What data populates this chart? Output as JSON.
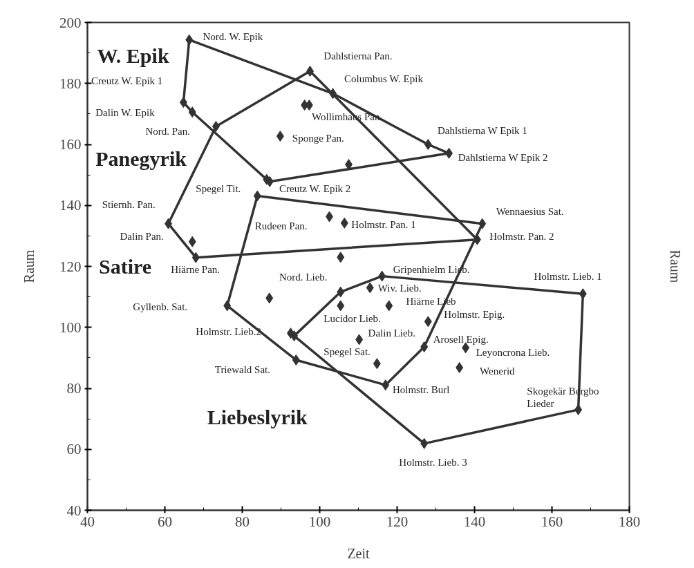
{
  "chart_data": {
    "type": "scatter",
    "xlabel": "Zeit",
    "ylabel": "Raum",
    "y2label": "Raum",
    "xlim": [
      40,
      180
    ],
    "xticks": [
      40,
      60,
      80,
      100,
      120,
      140,
      160,
      180
    ],
    "ylim": [
      40,
      200
    ],
    "yticks": [
      40,
      60,
      80,
      100,
      120,
      140,
      160,
      180,
      200
    ],
    "grid": false,
    "marker": "diamond",
    "series": [
      {
        "color": "#333333",
        "x": [
          66.3,
          103.4,
          128.0,
          133.4,
          87.1,
          86.3,
          67.1,
          64.8,
          96.1,
          97.3,
          89.8,
          107.5,
          97.5,
          73.2,
          60.9,
          68.0,
          140.7,
          67.1,
          83.9,
          142.0,
          127.0,
          117.0,
          93.9,
          76.1,
          102.5,
          106.4,
          105.4,
          93.4,
          92.5,
          105.4,
          116.1,
          168.0,
          166.8,
          127.0,
          87.0,
          105.4,
          110.2,
          113.0,
          117.9,
          128.0,
          114.8,
          137.7,
          136.1
        ],
        "values": [
          194.3,
          176.7,
          160.0,
          157.1,
          147.8,
          148.5,
          170.6,
          173.8,
          172.9,
          172.9,
          162.7,
          153.4,
          184.0,
          165.9,
          134.0,
          122.9,
          128.8,
          128.1,
          143.1,
          134.0,
          93.6,
          81.1,
          89.3,
          107.1,
          136.3,
          134.2,
          123.0,
          97.2,
          98.1,
          111.6,
          116.8,
          111.0,
          73.0,
          61.9,
          109.6,
          107.1,
          96.0,
          113.0,
          107.1,
          101.9,
          88.1,
          93.3,
          86.8
        ]
      },
      {
        "type": "line",
        "marker": "none",
        "color": "#333333",
        "x": [
          66.3,
          103.4,
          128.0,
          133.4
        ],
        "values": [
          194.3,
          176.7,
          160.0,
          157.1
        ]
      },
      {
        "type": "line",
        "marker": "none",
        "color": "#333333",
        "x": [
          64.8,
          67.1,
          86.3,
          87.1,
          133.4
        ],
        "values": [
          173.8,
          170.6,
          148.5,
          147.8,
          157.1
        ]
      },
      {
        "type": "line",
        "marker": "none",
        "color": "#333333",
        "x": [
          64.8,
          66.3
        ],
        "values": [
          173.8,
          194.3
        ]
      },
      {
        "type": "line",
        "marker": "none",
        "color": "#333333",
        "x": [
          60.9,
          73.2,
          97.5
        ],
        "values": [
          134.0,
          165.9,
          184.0
        ]
      },
      {
        "type": "line",
        "marker": "none",
        "color": "#333333",
        "x": [
          60.9,
          68.0,
          140.7
        ],
        "values": [
          134.0,
          122.9,
          128.8
        ]
      },
      {
        "type": "line",
        "marker": "none",
        "color": "#333333",
        "x": [
          97.5,
          140.7
        ],
        "values": [
          184.0,
          128.8
        ]
      },
      {
        "type": "line",
        "marker": "none",
        "color": "#333333",
        "x": [
          83.9,
          142.0
        ],
        "values": [
          143.1,
          134.0
        ]
      },
      {
        "type": "line",
        "marker": "none",
        "color": "#333333",
        "x": [
          76.1,
          93.9,
          117.0,
          127.0,
          142.0
        ],
        "values": [
          107.1,
          89.3,
          81.1,
          93.6,
          134.0
        ]
      },
      {
        "type": "line",
        "marker": "none",
        "color": "#333333",
        "x": [
          76.1,
          83.9
        ],
        "values": [
          107.1,
          143.1
        ]
      },
      {
        "type": "line",
        "marker": "none",
        "color": "#333333",
        "x": [
          93.4,
          105.4,
          116.1,
          168.0
        ],
        "values": [
          97.2,
          111.6,
          116.8,
          111.0
        ]
      },
      {
        "type": "line",
        "marker": "none",
        "color": "#333333",
        "x": [
          93.4,
          127.0,
          166.8,
          168.0
        ],
        "values": [
          97.2,
          61.9,
          73.0,
          111.0
        ]
      }
    ],
    "annotations": [
      "W. Epik",
      "Panegyrik",
      "Satire",
      "Liebeslyrik",
      "Nord. W. Epik",
      "Dahlstierna Pan.",
      "Columbus W. Epik",
      "Creutz W. Epik 1",
      "Dalin W. Epik",
      "Nord. Pan.",
      "Wollimhaus Pan.",
      "Sponge Pan.",
      "Dahlstierna W Epik 1",
      "Dahlstierna W Epik 2",
      "Spegel Tit.",
      "Creutz W. Epik 2",
      "Stiernh. Pan.",
      "Wennaesius Sat.",
      "Rudeen Pan.",
      "Holmstr. Pan. 1",
      "Holmstr. Pan. 2",
      "Dalin Pan.",
      "Hiärne Pan.",
      "Nord. Lieb.",
      "Gripenhielm Lieb.",
      "Holmstr. Lieb. 1",
      "Wiv. Lieb.",
      "Hiärne Lieb",
      "Gyllenb. Sat.",
      "Lucidor Lieb.",
      "Holmstr. Epig.",
      "Holmstr. Lieb.2",
      "Dalin Lieb.",
      "Arosell Epig.",
      "Spegel Sat.",
      "Leyoncrona Lieb.",
      "Triewald Sat.",
      "Wenerid",
      "Holmstr. Burl",
      "Skogekär Bergbo\nLieder",
      "Holmstr. Lieb. 3"
    ]
  }
}
